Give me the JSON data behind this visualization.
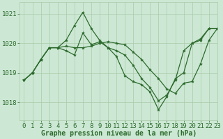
{
  "title": "Graphe pression niveau de la mer (hPa)",
  "xlabel": "Graphe pression niveau de la mer (hPa)",
  "xlim": [
    -0.5,
    23
  ],
  "ylim": [
    1017.4,
    1021.4
  ],
  "yticks": [
    1018,
    1019,
    1020,
    1021
  ],
  "xticks": [
    0,
    1,
    2,
    3,
    4,
    5,
    6,
    7,
    8,
    9,
    10,
    11,
    12,
    13,
    14,
    15,
    16,
    17,
    18,
    19,
    20,
    21,
    22,
    23
  ],
  "background_color": "#cce8d4",
  "grid_color": "#aacaaa",
  "line_color": "#2d6a2d",
  "line1_x": [
    0,
    1,
    2,
    3,
    4,
    5,
    6,
    7,
    8,
    9,
    10,
    11,
    12,
    13,
    14,
    15,
    16,
    17,
    18,
    19,
    20,
    21,
    22,
    23
  ],
  "line1_y": [
    1018.75,
    1019.0,
    1019.45,
    1019.85,
    1019.85,
    1020.1,
    1020.6,
    1021.05,
    1020.5,
    1020.1,
    1019.85,
    1019.55,
    1018.9,
    1018.7,
    1018.6,
    1018.35,
    1017.75,
    1018.2,
    1018.8,
    1019.0,
    1020.0,
    1020.1,
    1020.5,
    1020.5
  ],
  "line2_x": [
    0,
    1,
    2,
    3,
    4,
    5,
    6,
    7,
    8,
    9,
    10,
    11,
    12,
    13,
    14,
    15,
    16,
    17,
    18,
    19,
    20,
    21,
    22,
    23
  ],
  "line2_y": [
    1018.75,
    1019.0,
    1019.45,
    1019.85,
    1019.85,
    1019.75,
    1019.6,
    1020.35,
    1019.95,
    1020.05,
    1019.85,
    1019.75,
    1019.6,
    1019.25,
    1018.8,
    1018.5,
    1018.05,
    1018.25,
    1018.75,
    1019.75,
    1020.0,
    1020.15,
    1020.5,
    1020.5
  ],
  "line3_x": [
    0,
    1,
    2,
    3,
    4,
    5,
    6,
    7,
    8,
    9,
    10,
    11,
    12,
    13,
    14,
    15,
    16,
    17,
    18,
    19,
    20,
    21,
    22,
    23
  ],
  "line3_y": [
    1018.75,
    1019.0,
    1019.45,
    1019.85,
    1019.85,
    1019.9,
    1019.85,
    1019.85,
    1019.9,
    1020.0,
    1020.05,
    1020.0,
    1019.95,
    1019.7,
    1019.45,
    1019.1,
    1018.8,
    1018.45,
    1018.3,
    1018.65,
    1018.7,
    1019.3,
    1020.1,
    1020.5
  ],
  "marker_size": 3,
  "linewidth": 0.9,
  "font_color": "#2d6a2d",
  "axis_font_size": 6.5,
  "label_font_size": 7.0
}
